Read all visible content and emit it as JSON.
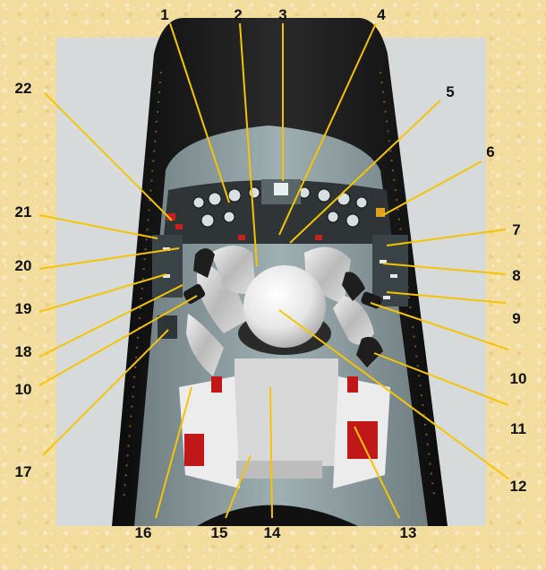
{
  "callouts": [
    {
      "label": "1"
    },
    {
      "label": "2"
    },
    {
      "label": "3"
    },
    {
      "label": "4"
    },
    {
      "label": "5"
    },
    {
      "label": "6"
    },
    {
      "label": "7"
    },
    {
      "label": "8"
    },
    {
      "label": "9"
    },
    {
      "label": "10"
    },
    {
      "label": "11"
    },
    {
      "label": "12"
    },
    {
      "label": "13"
    },
    {
      "label": "14"
    },
    {
      "label": "15"
    },
    {
      "label": "16"
    },
    {
      "label": "17"
    },
    {
      "label": "10"
    },
    {
      "label": "18"
    },
    {
      "label": "19"
    },
    {
      "label": "20"
    },
    {
      "label": "21"
    },
    {
      "label": "22"
    }
  ],
  "colors": {
    "background": "#f2dc9e",
    "leader_line": "#f5c400",
    "capsule_hull": "#1c1c1c",
    "cockpit_wall": "#8d9b9d",
    "suit": "#d8d8d8",
    "seat_red": "#c01818"
  }
}
